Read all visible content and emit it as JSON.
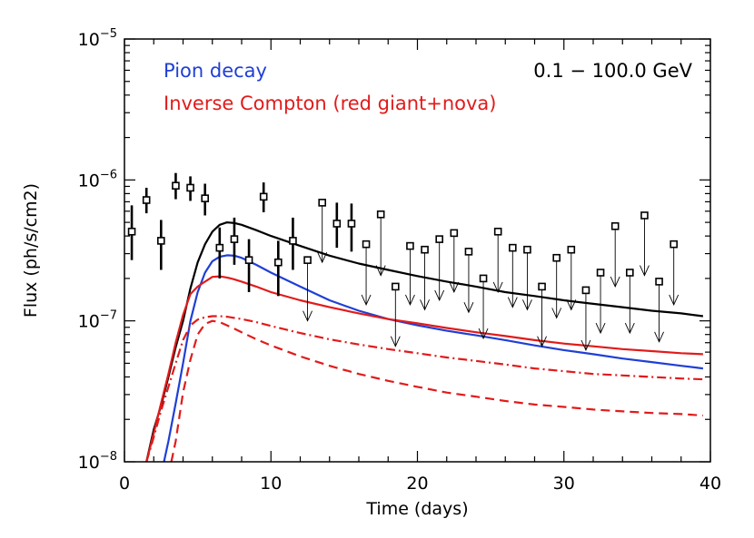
{
  "chart_data": {
    "type": "line",
    "xlabel": "Time (days)",
    "ylabel": "Flux (ph/s/cm2)",
    "xlim": [
      0,
      40
    ],
    "ylim": [
      1e-08,
      1e-05
    ],
    "yscale": "log",
    "x_ticks": [
      {
        "value": 0,
        "label": "0"
      },
      {
        "value": 10,
        "label": "10"
      },
      {
        "value": 20,
        "label": "20"
      },
      {
        "value": 30,
        "label": "30"
      },
      {
        "value": 40,
        "label": "40"
      }
    ],
    "y_ticks": [
      {
        "value": 1e-08,
        "base": "10",
        "exp": "−8"
      },
      {
        "value": 1e-07,
        "base": "10",
        "exp": "−7"
      },
      {
        "value": 1e-06,
        "base": "10",
        "exp": "−6"
      },
      {
        "value": 1e-05,
        "base": "10",
        "exp": "−5"
      }
    ],
    "annotation": "0.1 − 100.0 GeV",
    "legend": [
      {
        "label": "Pion decay",
        "color": "#1f3fd6"
      },
      {
        "label": "Inverse Compton (red giant+nova)",
        "color": "#e11b1b"
      }
    ],
    "series": [
      {
        "style": "solid",
        "color": "#000000",
        "x": [
          1.5,
          2.0,
          2.5,
          3.0,
          3.5,
          4.0,
          4.5,
          5.0,
          5.5,
          6.0,
          6.5,
          7.0,
          7.5,
          8.0,
          9.0,
          10.0,
          12.0,
          14.0,
          16.0,
          18.0,
          20.0,
          22.0,
          24.0,
          26.0,
          28.0,
          30.0,
          32.0,
          34.0,
          36.0,
          38.0,
          39.5
        ],
        "y": [
          1e-08,
          1.7e-08,
          2.5e-08,
          4e-08,
          6.5e-08,
          1e-07,
          1.7e-07,
          2.6e-07,
          3.5e-07,
          4.3e-07,
          4.8e-07,
          5e-07,
          4.95e-07,
          4.8e-07,
          4.4e-07,
          4e-07,
          3.4e-07,
          2.9e-07,
          2.55e-07,
          2.3e-07,
          2.08e-07,
          1.9e-07,
          1.75e-07,
          1.6e-07,
          1.5e-07,
          1.4e-07,
          1.32e-07,
          1.25e-07,
          1.18e-07,
          1.13e-07,
          1.08e-07
        ]
      },
      {
        "name": "Pion decay",
        "style": "solid",
        "color": "#1f3fd6",
        "x": [
          2.7,
          3.0,
          3.5,
          4.0,
          4.5,
          5.0,
          5.5,
          6.0,
          6.5,
          7.0,
          7.5,
          8.0,
          9.0,
          10.0,
          12.0,
          14.0,
          16.0,
          18.0,
          20.0,
          22.0,
          24.0,
          26.0,
          28.0,
          30.0,
          32.0,
          34.0,
          36.0,
          38.0,
          39.5
        ],
        "y": [
          1e-08,
          1.4e-08,
          2.6e-08,
          5e-08,
          1e-07,
          1.6e-07,
          2.2e-07,
          2.65e-07,
          2.85e-07,
          2.92e-07,
          2.9e-07,
          2.8e-07,
          2.5e-07,
          2.2e-07,
          1.75e-07,
          1.4e-07,
          1.18e-07,
          1.03e-07,
          9.3e-08,
          8.5e-08,
          7.9e-08,
          7.3e-08,
          6.7e-08,
          6.2e-08,
          5.8e-08,
          5.4e-08,
          5.1e-08,
          4.8e-08,
          4.6e-08
        ]
      },
      {
        "name": "Inverse Compton (red giant+nova)",
        "style": "solid",
        "color": "#e11b1b",
        "x": [
          1.5,
          2.0,
          2.5,
          3.0,
          3.5,
          4.0,
          4.5,
          5.0,
          5.5,
          6.0,
          6.5,
          7.0,
          7.5,
          8.0,
          9.0,
          10.0,
          12.0,
          14.0,
          16.0,
          18.0,
          20.0,
          22.0,
          24.0,
          26.0,
          28.0,
          30.0,
          32.0,
          34.0,
          36.0,
          38.0,
          39.5
        ],
        "y": [
          1e-08,
          1.6e-08,
          2.6e-08,
          4.2e-08,
          7e-08,
          1.1e-07,
          1.55e-07,
          1.75e-07,
          1.9e-07,
          2.05e-07,
          2.07e-07,
          2.03e-07,
          1.97e-07,
          1.9e-07,
          1.75e-07,
          1.6e-07,
          1.4e-07,
          1.25e-07,
          1.13e-07,
          1.03e-07,
          9.6e-08,
          8.9e-08,
          8.3e-08,
          7.8e-08,
          7.3e-08,
          6.9e-08,
          6.6e-08,
          6.3e-08,
          6.1e-08,
          5.9e-08,
          5.8e-08
        ]
      },
      {
        "style": "dash-dot",
        "color": "#e11b1b",
        "x": [
          1.5,
          2.0,
          2.5,
          3.0,
          3.5,
          4.0,
          4.5,
          5.0,
          5.5,
          6.0,
          6.5,
          7.0,
          7.5,
          8.0,
          9.0,
          10.0,
          12.0,
          14.0,
          16.0,
          18.0,
          20.0,
          22.0,
          24.0,
          26.0,
          28.0,
          30.0,
          32.0,
          34.0,
          36.0,
          38.0,
          39.5
        ],
        "y": [
          1e-08,
          1.5e-08,
          2.3e-08,
          3.4e-08,
          5e-08,
          7.3e-08,
          9.3e-08,
          1.02e-07,
          1.06e-07,
          1.08e-07,
          1.08e-07,
          1.07e-07,
          1.05e-07,
          1.03e-07,
          9.8e-08,
          9.2e-08,
          8.2e-08,
          7.4e-08,
          6.8e-08,
          6.3e-08,
          5.9e-08,
          5.5e-08,
          5.2e-08,
          4.9e-08,
          4.6e-08,
          4.4e-08,
          4.2e-08,
          4.1e-08,
          4e-08,
          3.9e-08,
          3.85e-08
        ]
      },
      {
        "style": "dashed",
        "color": "#e11b1b",
        "x": [
          3.2,
          3.5,
          4.0,
          4.5,
          5.0,
          5.5,
          6.0,
          6.5,
          7.0,
          7.5,
          8.0,
          9.0,
          10.0,
          12.0,
          14.0,
          16.0,
          18.0,
          20.0,
          22.0,
          24.0,
          26.0,
          28.0,
          30.0,
          32.0,
          34.0,
          36.0,
          38.0,
          39.5
        ],
        "y": [
          1e-08,
          1.4e-08,
          3.1e-08,
          5.3e-08,
          8e-08,
          9.5e-08,
          1e-07,
          9.8e-08,
          9.3e-08,
          8.8e-08,
          8.3e-08,
          7.4e-08,
          6.7e-08,
          5.6e-08,
          4.8e-08,
          4.2e-08,
          3.75e-08,
          3.4e-08,
          3.1e-08,
          2.9e-08,
          2.7e-08,
          2.55e-08,
          2.45e-08,
          2.35e-08,
          2.28e-08,
          2.22e-08,
          2.18e-08,
          2.13e-08
        ]
      }
    ],
    "detections": [
      {
        "x": 0.5,
        "y": 4.3e-07,
        "ylo": 2.7e-07,
        "yhi": 6.6e-07
      },
      {
        "x": 1.5,
        "y": 7.2e-07,
        "ylo": 5.8e-07,
        "yhi": 8.8e-07
      },
      {
        "x": 2.5,
        "y": 3.7e-07,
        "ylo": 2.3e-07,
        "yhi": 5.2e-07
      },
      {
        "x": 3.5,
        "y": 9.1e-07,
        "ylo": 7.3e-07,
        "yhi": 1.12e-06
      },
      {
        "x": 4.5,
        "y": 8.8e-07,
        "ylo": 7.1e-07,
        "yhi": 1.06e-06
      },
      {
        "x": 5.5,
        "y": 7.4e-07,
        "ylo": 5.6e-07,
        "yhi": 9.4e-07
      },
      {
        "x": 6.5,
        "y": 3.3e-07,
        "ylo": 2e-07,
        "yhi": 4.6e-07
      },
      {
        "x": 7.5,
        "y": 3.8e-07,
        "ylo": 2.5e-07,
        "yhi": 5.4e-07
      },
      {
        "x": 8.5,
        "y": 2.7e-07,
        "ylo": 1.6e-07,
        "yhi": 3.8e-07
      },
      {
        "x": 9.5,
        "y": 7.6e-07,
        "ylo": 5.9e-07,
        "yhi": 9.6e-07
      },
      {
        "x": 10.5,
        "y": 2.6e-07,
        "ylo": 1.5e-07,
        "yhi": 3.7e-07
      },
      {
        "x": 11.5,
        "y": 3.7e-07,
        "ylo": 2.3e-07,
        "yhi": 5.4e-07
      },
      {
        "x": 14.5,
        "y": 4.9e-07,
        "ylo": 3.3e-07,
        "yhi": 6.9e-07
      },
      {
        "x": 15.5,
        "y": 4.9e-07,
        "ylo": 3.1e-07,
        "yhi": 6.8e-07
      }
    ],
    "upper_limits": [
      {
        "x": 12.5,
        "y": 2.7e-07,
        "ylow": 1e-07
      },
      {
        "x": 13.5,
        "y": 6.9e-07,
        "ylow": 2.6e-07
      },
      {
        "x": 16.5,
        "y": 3.5e-07,
        "ylow": 1.3e-07
      },
      {
        "x": 17.5,
        "y": 5.7e-07,
        "ylow": 2.1e-07
      },
      {
        "x": 18.5,
        "y": 1.75e-07,
        "ylow": 6.6e-08
      },
      {
        "x": 19.5,
        "y": 3.4e-07,
        "ylow": 1.3e-07
      },
      {
        "x": 20.5,
        "y": 3.2e-07,
        "ylow": 1.2e-07
      },
      {
        "x": 21.5,
        "y": 3.8e-07,
        "ylow": 1.4e-07
      },
      {
        "x": 22.5,
        "y": 4.2e-07,
        "ylow": 1.6e-07
      },
      {
        "x": 23.5,
        "y": 3.1e-07,
        "ylow": 1.15e-07
      },
      {
        "x": 24.5,
        "y": 2e-07,
        "ylow": 7.5e-08
      },
      {
        "x": 25.5,
        "y": 4.3e-07,
        "ylow": 1.6e-07
      },
      {
        "x": 26.5,
        "y": 3.3e-07,
        "ylow": 1.25e-07
      },
      {
        "x": 27.5,
        "y": 3.2e-07,
        "ylow": 1.2e-07
      },
      {
        "x": 28.5,
        "y": 1.75e-07,
        "ylow": 6.6e-08
      },
      {
        "x": 29.5,
        "y": 2.8e-07,
        "ylow": 1.05e-07
      },
      {
        "x": 30.5,
        "y": 3.2e-07,
        "ylow": 1.2e-07
      },
      {
        "x": 31.5,
        "y": 1.65e-07,
        "ylow": 6.2e-08
      },
      {
        "x": 32.5,
        "y": 2.2e-07,
        "ylow": 8.2e-08
      },
      {
        "x": 33.5,
        "y": 4.7e-07,
        "ylow": 1.75e-07
      },
      {
        "x": 34.5,
        "y": 2.2e-07,
        "ylow": 8.2e-08
      },
      {
        "x": 35.5,
        "y": 5.6e-07,
        "ylow": 2.1e-07
      },
      {
        "x": 36.5,
        "y": 1.9e-07,
        "ylow": 7.1e-08
      },
      {
        "x": 37.5,
        "y": 3.5e-07,
        "ylow": 1.3e-07
      }
    ]
  }
}
